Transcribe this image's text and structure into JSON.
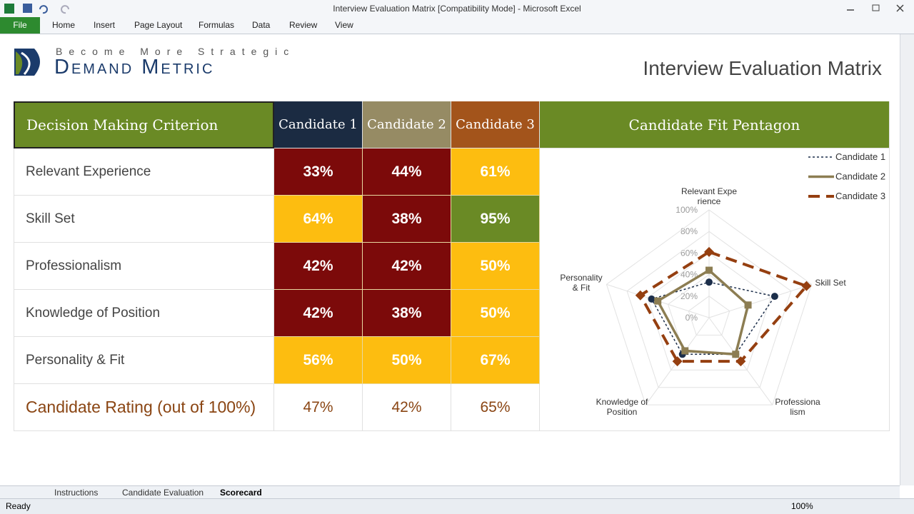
{
  "window": {
    "title": "Interview Evaluation Matrix  [Compatibility Mode]  -  Microsoft Excel"
  },
  "ribbon": {
    "file": "File",
    "tabs": [
      "Home",
      "Insert",
      "Page Layout",
      "Formulas",
      "Data",
      "Review",
      "View"
    ]
  },
  "logo": {
    "tagline": "Become More Strategic",
    "name": "Demand Metric"
  },
  "sheet": {
    "title": "Interview Evaluation Matrix"
  },
  "table": {
    "header": {
      "criterion": "Decision Making Criterion",
      "candidates": [
        "Candidate 1",
        "Candidate 2",
        "Candidate 3"
      ],
      "colors": [
        "#1b2b42",
        "#968b64",
        "#a3541b"
      ],
      "color": "#6a8a25"
    },
    "rows": [
      {
        "label": "Relevant Experience",
        "cells": [
          "33%",
          "44%",
          "61%"
        ],
        "fills": [
          "#7c0a0a",
          "#7c0a0a",
          "#fdbd10"
        ]
      },
      {
        "label": "Skill Set",
        "cells": [
          "64%",
          "38%",
          "95%"
        ],
        "fills": [
          "#fdbd10",
          "#7c0a0a",
          "#6a8a25"
        ]
      },
      {
        "label": "Professionalism",
        "cells": [
          "42%",
          "42%",
          "50%"
        ],
        "fills": [
          "#7c0a0a",
          "#7c0a0a",
          "#fdbd10"
        ]
      },
      {
        "label": "Knowledge of Position",
        "cells": [
          "42%",
          "38%",
          "50%"
        ],
        "fills": [
          "#7c0a0a",
          "#7c0a0a",
          "#fdbd10"
        ]
      },
      {
        "label": "Personality & Fit",
        "cells": [
          "56%",
          "50%",
          "67%"
        ],
        "fills": [
          "#fdbd10",
          "#fdbd10",
          "#fdbd10"
        ]
      }
    ],
    "rating": {
      "label": "Candidate Rating (out of 100%)",
      "cells": [
        "47%",
        "42%",
        "65%"
      ],
      "color": "#8a4513"
    }
  },
  "chart_data": {
    "type": "radar",
    "title": "Candidate Fit Pentagon",
    "categories": [
      "Relevant Experience",
      "Skill Set",
      "Professionalism",
      "Knowledge of Position",
      "Personality & Fit"
    ],
    "series": [
      {
        "name": "Candidate 1",
        "color": "#1c2e4a",
        "dash": "3,3",
        "line_width": 1.5,
        "marker": "circle",
        "values": [
          33,
          64,
          42,
          42,
          56
        ]
      },
      {
        "name": "Candidate 2",
        "color": "#8c7d52",
        "dash": "none",
        "line_width": 3.5,
        "marker": "square",
        "values": [
          44,
          38,
          42,
          38,
          50
        ]
      },
      {
        "name": "Candidate 3",
        "color": "#953f10",
        "dash": "16,9",
        "line_width": 4,
        "marker": "diamond",
        "values": [
          61,
          95,
          50,
          50,
          67
        ]
      }
    ],
    "ylim": [
      0,
      100
    ],
    "yticks": [
      {
        "value": 0,
        "label": "0%"
      },
      {
        "value": 20,
        "label": "20%"
      },
      {
        "value": 40,
        "label": "40%"
      },
      {
        "value": 60,
        "label": "60%"
      },
      {
        "value": 80,
        "label": "80%"
      },
      {
        "value": 100,
        "label": "100%"
      }
    ],
    "grid": true,
    "legend": "top-right"
  },
  "sheet_tabs": {
    "tabs": [
      "Instructions",
      "Candidate Evaluation",
      "Scorecard"
    ],
    "active": 2
  },
  "status": {
    "mode": "Ready",
    "zoom": "100%"
  }
}
